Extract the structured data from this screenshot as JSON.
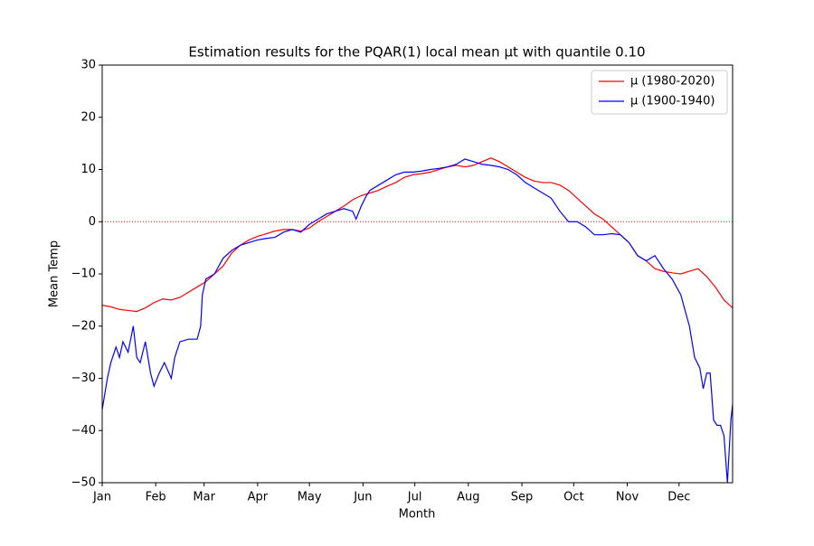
{
  "chart_data": {
    "type": "line",
    "title": "Estimation results for the PQAR(1) local mean μt with quantile 0.10",
    "x_label": "Month",
    "y_label": "Mean Temp",
    "xlim": [
      0,
      365
    ],
    "xticks": [
      {
        "value": 0,
        "label": "Jan"
      },
      {
        "value": 31,
        "label": "Feb"
      },
      {
        "value": 59,
        "label": "Mar"
      },
      {
        "value": 90,
        "label": "Apr"
      },
      {
        "value": 120,
        "label": "May"
      },
      {
        "value": 151,
        "label": "Jun"
      },
      {
        "value": 181,
        "label": "Jul"
      },
      {
        "value": 212,
        "label": "Aug"
      },
      {
        "value": 243,
        "label": "Sep"
      },
      {
        "value": 273,
        "label": "Oct"
      },
      {
        "value": 304,
        "label": "Nov"
      },
      {
        "value": 334,
        "label": "Dec"
      }
    ],
    "ylim": [
      -50,
      30
    ],
    "yticks": [
      {
        "value": -50,
        "label": "−50"
      },
      {
        "value": -40,
        "label": "−40"
      },
      {
        "value": -30,
        "label": "−30"
      },
      {
        "value": -20,
        "label": "−20"
      },
      {
        "value": -10,
        "label": "−10"
      },
      0,
      10,
      20,
      30
    ],
    "hline": 0,
    "hline_color": "#ff0000",
    "legend": "upper right",
    "series": [
      {
        "name": "μ (1980-2020)",
        "color": "#ff0000",
        "x": [
          0,
          5,
          10,
          15,
          20,
          25,
          30,
          35,
          40,
          45,
          50,
          55,
          60,
          65,
          70,
          75,
          80,
          85,
          90,
          95,
          100,
          105,
          110,
          115,
          120,
          125,
          130,
          135,
          140,
          145,
          150,
          155,
          160,
          165,
          170,
          175,
          180,
          185,
          190,
          195,
          200,
          205,
          210,
          215,
          220,
          225,
          230,
          235,
          240,
          245,
          250,
          255,
          260,
          265,
          270,
          275,
          280,
          285,
          290,
          295,
          300,
          305,
          310,
          315,
          320,
          325,
          330,
          335,
          340,
          345,
          350,
          355,
          360,
          365
        ],
        "values": [
          -16,
          -16.3,
          -16.8,
          -17,
          -17.2,
          -16.5,
          -15.5,
          -14.8,
          -15,
          -14.5,
          -13.5,
          -12.5,
          -11.5,
          -10,
          -8.5,
          -6,
          -4.5,
          -3.5,
          -2.8,
          -2.3,
          -1.8,
          -1.5,
          -1.5,
          -1.8,
          -1.2,
          0,
          1,
          2,
          3,
          4.2,
          5,
          5.5,
          6,
          6.8,
          7.5,
          8.5,
          9,
          9.2,
          9.5,
          10,
          10.5,
          10.8,
          10.5,
          10.8,
          11.5,
          12.2,
          11.5,
          10.5,
          9.5,
          8.5,
          7.8,
          7.5,
          7.5,
          7,
          6,
          4.5,
          3,
          1.5,
          0.5,
          -1,
          -2.5,
          -4,
          -6.5,
          -7.5,
          -9,
          -9.5,
          -9.8,
          -10,
          -9.5,
          -9,
          -10.5,
          -12.5,
          -15,
          -16.5
        ]
      },
      {
        "name": "μ (1900-1940)",
        "color": "#0000ff",
        "x": [
          0,
          3,
          5,
          8,
          10,
          12,
          15,
          18,
          20,
          22,
          25,
          28,
          30,
          33,
          36,
          40,
          42,
          45,
          50,
          55,
          57,
          58,
          60,
          65,
          70,
          75,
          80,
          85,
          90,
          95,
          100,
          105,
          110,
          115,
          120,
          125,
          130,
          135,
          140,
          145,
          147,
          150,
          153,
          155,
          160,
          165,
          170,
          175,
          180,
          185,
          190,
          195,
          200,
          205,
          210,
          215,
          220,
          225,
          230,
          235,
          240,
          245,
          250,
          255,
          260,
          265,
          270,
          275,
          280,
          285,
          290,
          295,
          300,
          305,
          310,
          315,
          320,
          325,
          330,
          335,
          340,
          343,
          346,
          348,
          350,
          352,
          354,
          356,
          358,
          360,
          362,
          364,
          365
        ],
        "values": [
          -36,
          -30,
          -27,
          -24,
          -26,
          -23,
          -25,
          -20,
          -26,
          -27,
          -23,
          -29,
          -31.5,
          -29,
          -27,
          -30,
          -26,
          -23,
          -22.5,
          -22.5,
          -20,
          -14,
          -11,
          -10,
          -7,
          -5.5,
          -4.5,
          -4,
          -3.5,
          -3.2,
          -3,
          -2,
          -1.5,
          -2,
          -0.5,
          0.5,
          1.5,
          2,
          2.5,
          2,
          0.5,
          3,
          5,
          6,
          7,
          8,
          9,
          9.5,
          9.5,
          9.7,
          10,
          10.2,
          10.5,
          11,
          12,
          11.5,
          11,
          10.8,
          10.5,
          10,
          9,
          7.5,
          6.5,
          5.5,
          4.5,
          2,
          0,
          0,
          -1,
          -2.5,
          -2.5,
          -2.3,
          -2.5,
          -4,
          -6.5,
          -7.5,
          -6.5,
          -9,
          -11,
          -14,
          -20,
          -26,
          -28,
          -32,
          -29,
          -29,
          -38,
          -39,
          -39,
          -41,
          -50,
          -38,
          -35
        ]
      }
    ]
  }
}
